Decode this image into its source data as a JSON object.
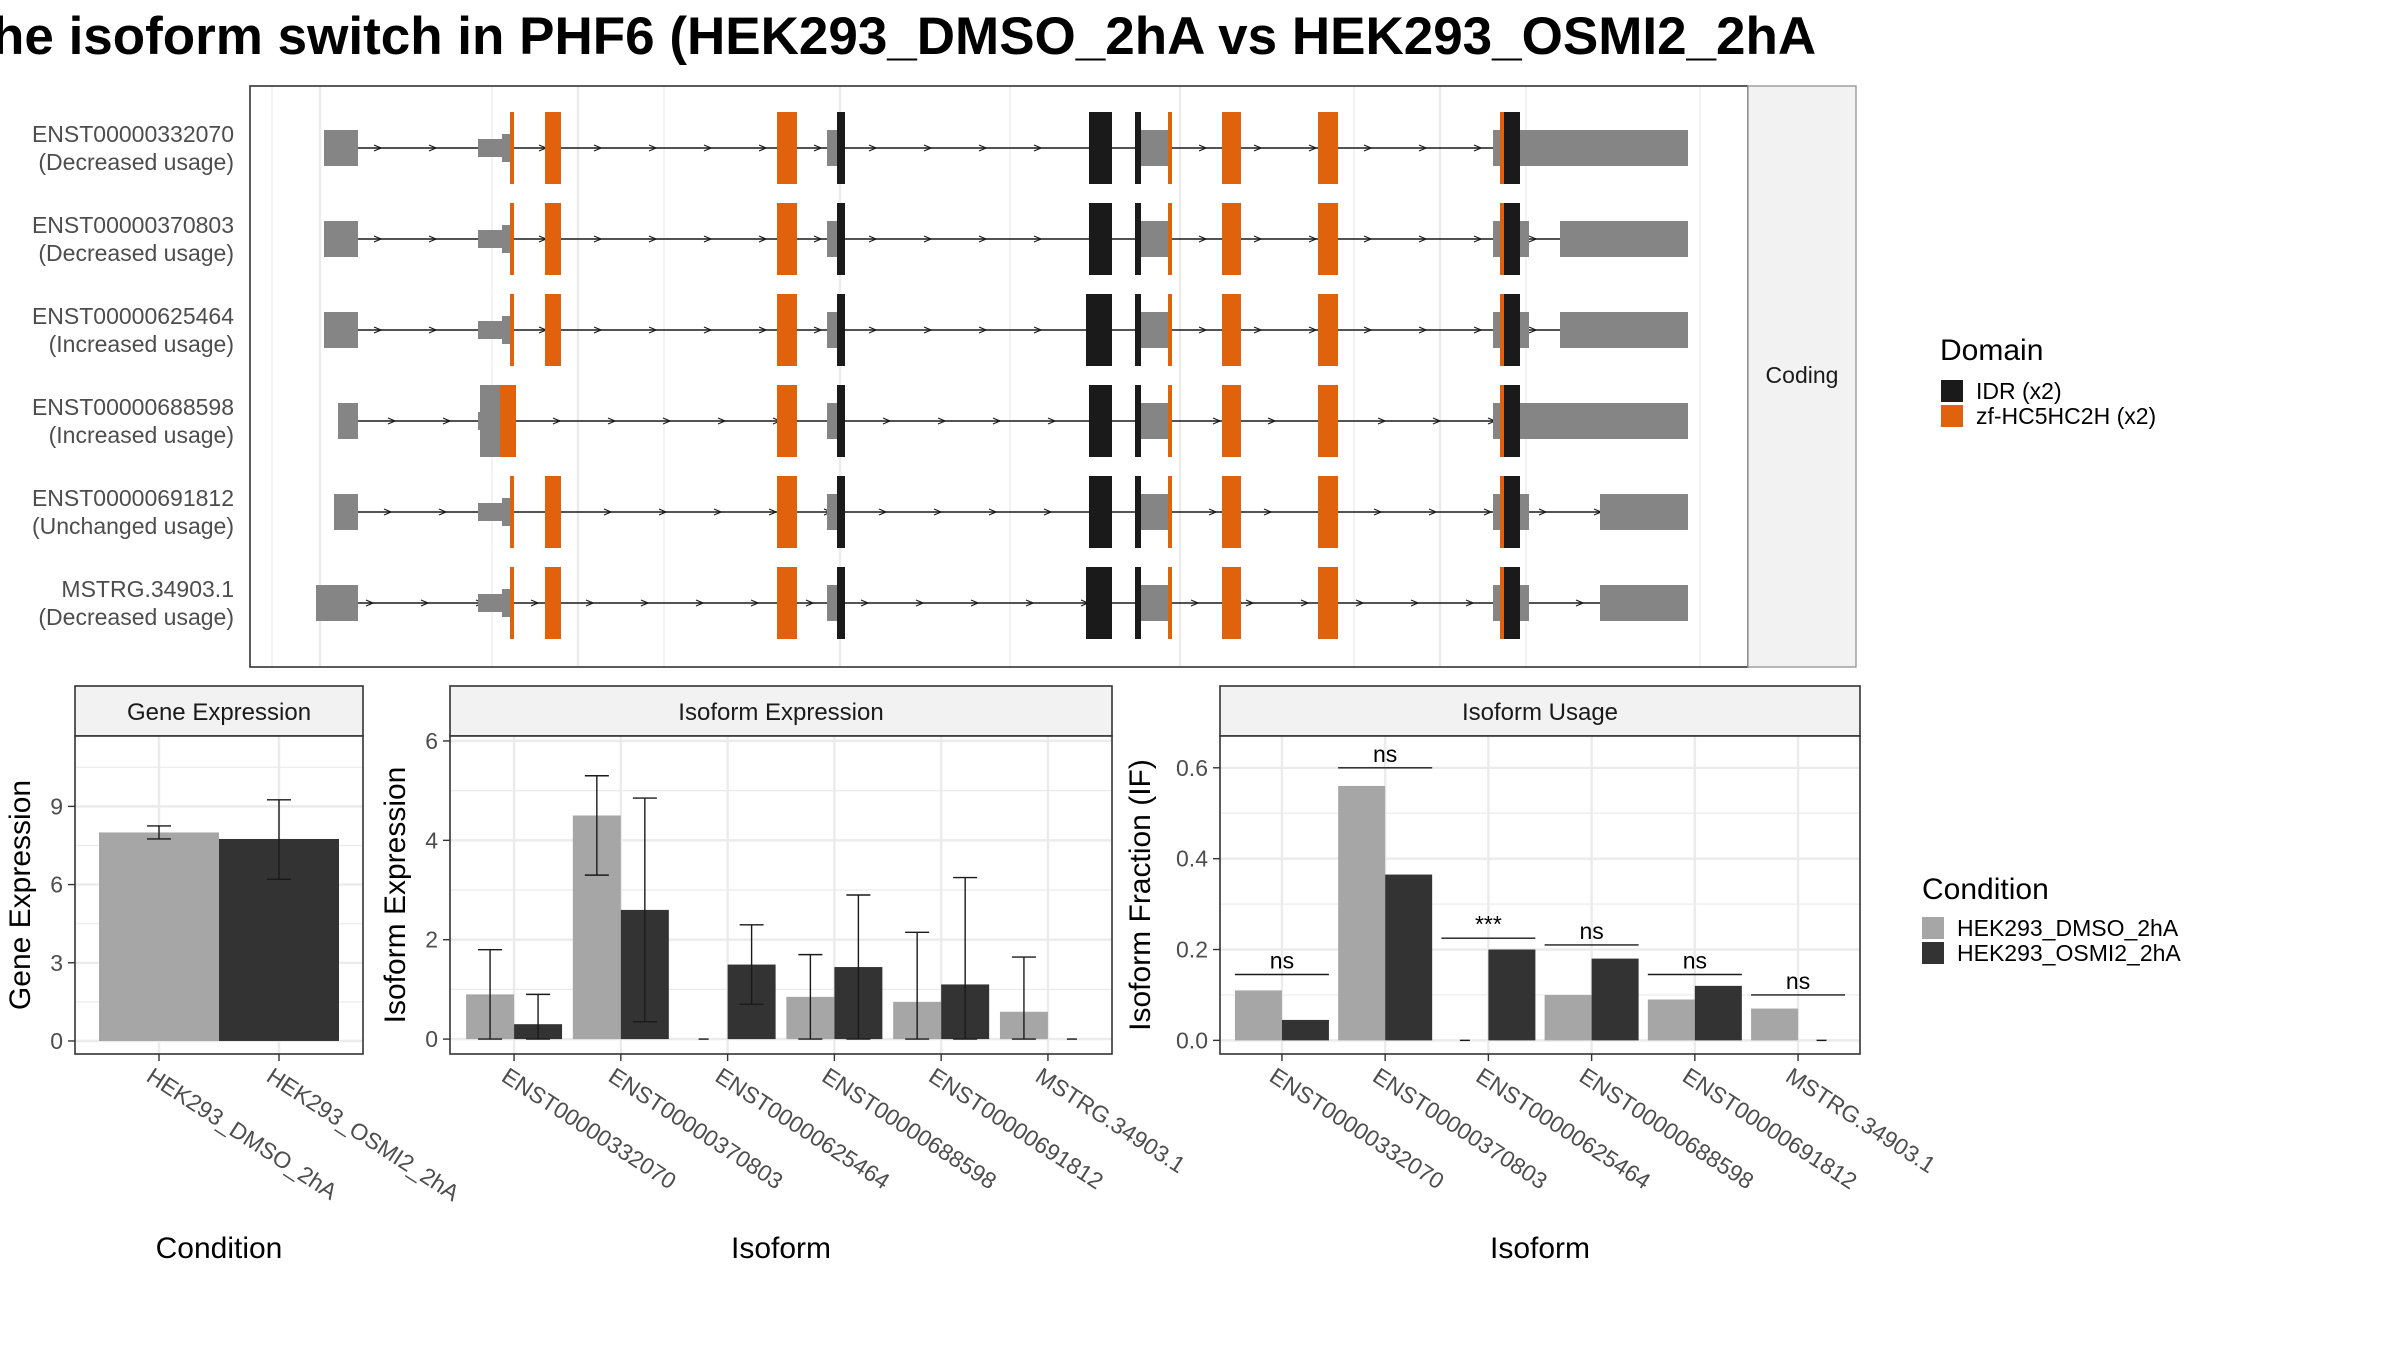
{
  "title": "he isoform switch in PHF6 (HEK293_DMSO_2hA vs HEK293_OSMI2_2hA",
  "colors": {
    "dmso": "#a6a6a6",
    "osmi": "#333333",
    "exon": "#858585",
    "idr": "#1a1a1a",
    "zf": "#e0620d",
    "grid": "#ebebeb",
    "strip": "#f2f2f2"
  },
  "transcript_panel": {
    "strip_label": "Coding",
    "transcripts": [
      {
        "id": "ENST00000332070",
        "usage": "(Decreased usage)"
      },
      {
        "id": "ENST00000370803",
        "usage": "(Decreased usage)"
      },
      {
        "id": "ENST00000625464",
        "usage": "(Increased usage)"
      },
      {
        "id": "ENST00000688598",
        "usage": "(Increased usage)"
      },
      {
        "id": "ENST00000691812",
        "usage": "(Unchanged usage)"
      },
      {
        "id": "MSTRG.34903.1",
        "usage": "(Decreased usage)"
      }
    ]
  },
  "domain_legend": {
    "title": "Domain",
    "items": [
      {
        "label": "IDR (x2)",
        "color": "#1a1a1a"
      },
      {
        "label": "zf-HC5HC2H (x2)",
        "color": "#e0620d"
      }
    ]
  },
  "condition_legend": {
    "title": "Condition",
    "items": [
      {
        "label": "HEK293_DMSO_2hA",
        "color": "#a6a6a6"
      },
      {
        "label": "HEK293_OSMI2_2hA",
        "color": "#333333"
      }
    ]
  },
  "chart_data": [
    {
      "type": "bar",
      "title": "Gene Expression",
      "xlabel": "Condition",
      "ylabel": "Gene Expression",
      "ylim": [
        -0.5,
        11.7
      ],
      "yticks": [
        0,
        3,
        6,
        9
      ],
      "categories": [
        "HEK293_DMSO_2hA",
        "HEK293_OSMI2_2hA"
      ],
      "values": [
        8.0,
        7.75
      ],
      "errors": [
        [
          7.75,
          8.25
        ],
        [
          6.2,
          9.25
        ]
      ]
    },
    {
      "type": "bar",
      "title": "Isoform Expression",
      "xlabel": "Isoform",
      "ylabel": "Isoform Expression",
      "ylim": [
        -0.3,
        6.1
      ],
      "yticks": [
        0,
        2,
        4,
        6
      ],
      "categories": [
        "ENST00000332070",
        "ENST00000370803",
        "ENST00000625464",
        "ENST00000688598",
        "ENST00000691812",
        "MSTRG.34903.1"
      ],
      "series": [
        {
          "name": "HEK293_DMSO_2hA",
          "values": [
            0.9,
            4.5,
            0.0,
            0.85,
            0.75,
            0.55
          ],
          "errors": [
            [
              0.0,
              1.8
            ],
            [
              3.3,
              5.3
            ],
            [
              0.0,
              0.0
            ],
            [
              0.0,
              1.7
            ],
            [
              0.0,
              2.15
            ],
            [
              0.0,
              1.65
            ]
          ]
        },
        {
          "name": "HEK293_OSMI2_2hA",
          "values": [
            0.3,
            2.6,
            1.5,
            1.45,
            1.1,
            0.0
          ],
          "errors": [
            [
              0.0,
              0.9
            ],
            [
              0.35,
              4.85
            ],
            [
              0.7,
              2.3
            ],
            [
              0.0,
              2.9
            ],
            [
              0.0,
              3.25
            ],
            [
              0.0,
              0.0
            ]
          ]
        }
      ]
    },
    {
      "type": "bar",
      "title": "Isoform Usage",
      "xlabel": "Isoform",
      "ylabel": "Isoform Fraction (IF)",
      "ylim": [
        -0.03,
        0.67
      ],
      "yticks": [
        0.0,
        0.2,
        0.4,
        0.6
      ],
      "ytick_labels": [
        "0.0",
        "0.2",
        "0.4",
        "0.6"
      ],
      "categories": [
        "ENST00000332070",
        "ENST00000370803",
        "ENST00000625464",
        "ENST00000688598",
        "ENST00000691812",
        "MSTRG.34903.1"
      ],
      "series": [
        {
          "name": "HEK293_DMSO_2hA",
          "values": [
            0.11,
            0.56,
            0.0,
            0.1,
            0.09,
            0.07
          ]
        },
        {
          "name": "HEK293_OSMI2_2hA",
          "values": [
            0.045,
            0.365,
            0.2,
            0.18,
            0.12,
            0.0
          ]
        }
      ],
      "significance": [
        "ns",
        "ns",
        "***",
        "ns",
        "ns",
        "ns"
      ],
      "significance_level": [
        0.145,
        0.6,
        0.225,
        0.21,
        0.145,
        0.1
      ]
    }
  ]
}
